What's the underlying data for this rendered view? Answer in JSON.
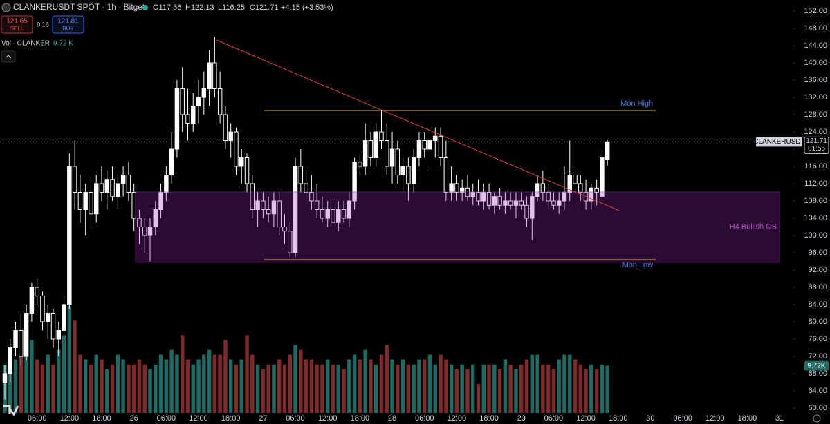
{
  "chart_data": {
    "type": "candlestick",
    "title": "CLANKERUSDT SPOT · 1h · Bitget",
    "ohlc_text": [
      "O117.56",
      "H122.13",
      "L116.25",
      "C121.71",
      "+4.15 (+3.53%)"
    ],
    "sell_price": "121.65",
    "sell_label": "SELL",
    "spread": "0.16",
    "buy_price": "121.81",
    "buy_label": "BUY",
    "volume_legend": "Vol · CLANKER",
    "volume_legend_value": "9.72 K",
    "symbol_tag": "CLANKERUSDT",
    "last_price_tag": "121.71",
    "countdown_tag": "01:55",
    "volume_tag": "9.72K",
    "up_color": "#ffffff",
    "down_color": "#000000",
    "volume_up_color": "#1e6b63",
    "volume_down_color": "#7f2b2b",
    "xlim": [
      -0.9,
      146.3
    ],
    "ylim": [
      58.88,
      154.56
    ],
    "volume_lim": [
      0,
      85
    ],
    "last_price": 121.71,
    "xticks": [
      {
        "value": 6,
        "label": "06:00"
      },
      {
        "value": 12,
        "label": "12:00"
      },
      {
        "value": 18,
        "label": "18:00"
      },
      {
        "value": 24,
        "label": "26"
      },
      {
        "value": 30,
        "label": "06:00"
      },
      {
        "value": 36,
        "label": "12:00"
      },
      {
        "value": 42,
        "label": "18:00"
      },
      {
        "value": 48,
        "label": "27"
      },
      {
        "value": 54,
        "label": "06:00"
      },
      {
        "value": 60,
        "label": "12:00"
      },
      {
        "value": 66,
        "label": "18:00"
      },
      {
        "value": 72,
        "label": "28"
      },
      {
        "value": 78,
        "label": "06:00"
      },
      {
        "value": 84,
        "label": "12:00"
      },
      {
        "value": 90,
        "label": "18:00"
      },
      {
        "value": 96,
        "label": "29"
      },
      {
        "value": 102,
        "label": "06:00"
      },
      {
        "value": 108,
        "label": "12:00"
      },
      {
        "value": 114,
        "label": "18:00"
      },
      {
        "value": 120,
        "label": "30"
      },
      {
        "value": 126,
        "label": "06:00"
      },
      {
        "value": 132,
        "label": "12:00"
      },
      {
        "value": 138,
        "label": "18:00"
      },
      {
        "value": 144,
        "label": "31"
      }
    ],
    "yticks": [
      {
        "value": 60,
        "label": "60.00"
      },
      {
        "value": 64,
        "label": "64.00"
      },
      {
        "value": 68,
        "label": "68.00"
      },
      {
        "value": 72,
        "label": "72.00"
      },
      {
        "value": 76,
        "label": "76.00"
      },
      {
        "value": 80,
        "label": "80.00"
      },
      {
        "value": 84,
        "label": "84.00"
      },
      {
        "value": 88,
        "label": "88.00"
      },
      {
        "value": 92,
        "label": "92.00"
      },
      {
        "value": 96,
        "label": "96.00"
      },
      {
        "value": 100,
        "label": "100.00"
      },
      {
        "value": 104,
        "label": "104.00"
      },
      {
        "value": 108,
        "label": "108.00"
      },
      {
        "value": 112,
        "label": "112.00"
      },
      {
        "value": 116,
        "label": "116.00"
      },
      {
        "value": 120,
        "label": "120.00"
      },
      {
        "value": 124,
        "label": "124.00"
      },
      {
        "value": 128,
        "label": "128.00"
      },
      {
        "value": 132,
        "label": "132.00"
      },
      {
        "value": 136,
        "label": "136.00"
      },
      {
        "value": 140,
        "label": "140.00"
      },
      {
        "value": 144,
        "label": "144.00"
      },
      {
        "value": 148,
        "label": "148.00"
      },
      {
        "value": 152,
        "label": "152.00"
      }
    ],
    "candles": [
      [
        66,
        70,
        62,
        68
      ],
      [
        68,
        76,
        66,
        74
      ],
      [
        74,
        80,
        72,
        78
      ],
      [
        78,
        82,
        70,
        72
      ],
      [
        72,
        84,
        71,
        82
      ],
      [
        82,
        89,
        80,
        88
      ],
      [
        88,
        90,
        84,
        86
      ],
      [
        86,
        87,
        78,
        80
      ],
      [
        80,
        84,
        76,
        82
      ],
      [
        82,
        83,
        74,
        76
      ],
      [
        76,
        80,
        72,
        78
      ],
      [
        78,
        86,
        76,
        84
      ],
      [
        84,
        119,
        83,
        116
      ],
      [
        116,
        122,
        106,
        110
      ],
      [
        110,
        114,
        103,
        106
      ],
      [
        106,
        112,
        100,
        110
      ],
      [
        110,
        113,
        102,
        105
      ],
      [
        105,
        114,
        103,
        112
      ],
      [
        112,
        116,
        108,
        110
      ],
      [
        110,
        115,
        106,
        113
      ],
      [
        113,
        116,
        108,
        109
      ],
      [
        109,
        114,
        106,
        112
      ],
      [
        112,
        116,
        109,
        114
      ],
      [
        114,
        117,
        108,
        110
      ],
      [
        110,
        112,
        101,
        104
      ],
      [
        104,
        106,
        98,
        102
      ],
      [
        102,
        104,
        96,
        100
      ],
      [
        100,
        104,
        94,
        102
      ],
      [
        102,
        108,
        100,
        106
      ],
      [
        106,
        112,
        104,
        110
      ],
      [
        110,
        116,
        108,
        114
      ],
      [
        114,
        124,
        112,
        120
      ],
      [
        120,
        136,
        118,
        134
      ],
      [
        134,
        139,
        124,
        128
      ],
      [
        128,
        134,
        122,
        126
      ],
      [
        126,
        133,
        124,
        130
      ],
      [
        130,
        136,
        126,
        132
      ],
      [
        132,
        138,
        128,
        134
      ],
      [
        134,
        143,
        130,
        140
      ],
      [
        140,
        146,
        132,
        134
      ],
      [
        134,
        138,
        126,
        128
      ],
      [
        128,
        130,
        120,
        122
      ],
      [
        122,
        126,
        118,
        124
      ],
      [
        124,
        125,
        114,
        116
      ],
      [
        116,
        120,
        112,
        118
      ],
      [
        118,
        119,
        110,
        112
      ],
      [
        112,
        114,
        104,
        106
      ],
      [
        106,
        110,
        102,
        108
      ],
      [
        108,
        110,
        104,
        106
      ],
      [
        106,
        109,
        103,
        105
      ],
      [
        105,
        110,
        102,
        108
      ],
      [
        108,
        110,
        100,
        102
      ],
      [
        102,
        105,
        98,
        101
      ],
      [
        101,
        103,
        95,
        96
      ],
      [
        96,
        118,
        95,
        116
      ],
      [
        116,
        120,
        110,
        112
      ],
      [
        112,
        115,
        108,
        110
      ],
      [
        110,
        114,
        106,
        108
      ],
      [
        108,
        112,
        104,
        106
      ],
      [
        106,
        109,
        103,
        104
      ],
      [
        104,
        108,
        102,
        106
      ],
      [
        106,
        108,
        102,
        103
      ],
      [
        103,
        108,
        101,
        106
      ],
      [
        106,
        108,
        103,
        104
      ],
      [
        104,
        110,
        102,
        108
      ],
      [
        108,
        118,
        106,
        117
      ],
      [
        117,
        119,
        114,
        116
      ],
      [
        116,
        126,
        114,
        122
      ],
      [
        122,
        124,
        116,
        118
      ],
      [
        118,
        126,
        116,
        124
      ],
      [
        124,
        129,
        120,
        122
      ],
      [
        122,
        126,
        114,
        116
      ],
      [
        116,
        124,
        112,
        120
      ],
      [
        120,
        122,
        112,
        114
      ],
      [
        114,
        118,
        110,
        116
      ],
      [
        116,
        118,
        108,
        112
      ],
      [
        112,
        120,
        110,
        118
      ],
      [
        118,
        124,
        116,
        122
      ],
      [
        122,
        124,
        118,
        120
      ],
      [
        120,
        124,
        116,
        122
      ],
      [
        122,
        125,
        118,
        123
      ],
      [
        123,
        125,
        116,
        118
      ],
      [
        118,
        122,
        108,
        110
      ],
      [
        110,
        116,
        108,
        112
      ],
      [
        112,
        114,
        108,
        110
      ],
      [
        110,
        113,
        108,
        111
      ],
      [
        111,
        114,
        108,
        109
      ],
      [
        109,
        112,
        107,
        110
      ],
      [
        110,
        113,
        107,
        108
      ],
      [
        108,
        112,
        106,
        110
      ],
      [
        110,
        112,
        106,
        107
      ],
      [
        107,
        110,
        105,
        109
      ],
      [
        109,
        111,
        106,
        107
      ],
      [
        107,
        110,
        105,
        108
      ],
      [
        108,
        110,
        106,
        107
      ],
      [
        107,
        110,
        104,
        108
      ],
      [
        108,
        110,
        106,
        107
      ],
      [
        107,
        109,
        102,
        104
      ],
      [
        104,
        110,
        99,
        109
      ],
      [
        109,
        114,
        108,
        112
      ],
      [
        112,
        115,
        108,
        110
      ],
      [
        110,
        112,
        106,
        108
      ],
      [
        108,
        110,
        106,
        107
      ],
      [
        107,
        110,
        105,
        108
      ],
      [
        108,
        116,
        106,
        110
      ],
      [
        110,
        122,
        108,
        114
      ],
      [
        114,
        116,
        110,
        112
      ],
      [
        112,
        114,
        108,
        110
      ],
      [
        110,
        113,
        106,
        108
      ],
      [
        108,
        112,
        106,
        111
      ],
      [
        111,
        113,
        107,
        110
      ],
      [
        109,
        119,
        108,
        118
      ],
      [
        117.56,
        122.13,
        116.25,
        121.71
      ]
    ],
    "volume": [
      10,
      12,
      11,
      13,
      12,
      15,
      11,
      10,
      12,
      10,
      13,
      16,
      22,
      19,
      12,
      11,
      10,
      12,
      11,
      9,
      10,
      12,
      11,
      10,
      10,
      11,
      10,
      9,
      10,
      12,
      11,
      13,
      12,
      16,
      11,
      10,
      11,
      12,
      13,
      12,
      12,
      15,
      11,
      10,
      11,
      16,
      12,
      10,
      9,
      10,
      10,
      11,
      10,
      12,
      14,
      13,
      11,
      11,
      10,
      10,
      11,
      10,
      10,
      9,
      11,
      12,
      11,
      13,
      11,
      10,
      12,
      14,
      11,
      10,
      11,
      10,
      10,
      11,
      11,
      12,
      10,
      12,
      11,
      10,
      9,
      10,
      9,
      10,
      6,
      10,
      10,
      10,
      9,
      11,
      10,
      9,
      10,
      11,
      12,
      12,
      10,
      10,
      9,
      11,
      12,
      12,
      11,
      10,
      9,
      10,
      9,
      10,
      9.72
    ],
    "trendline": {
      "x": [
        39.3,
        114.1
      ],
      "y": [
        145.3,
        105.8
      ],
      "color": "#e0404a"
    },
    "levels": [
      {
        "label": "Mon High",
        "x": [
          48.2,
          121
        ],
        "y": 128.96,
        "color": "#d6b84e",
        "label_color": "#4d7ce8"
      },
      {
        "label": "Mon Low",
        "x": [
          48.2,
          121
        ],
        "y": 94.4,
        "color": "#d6b84e",
        "label_color": "#4d7ce8"
      }
    ],
    "zone": {
      "label": "H4 Bullish OB",
      "x": [
        24.3,
        144
      ],
      "y": [
        93.8,
        110.1
      ],
      "color": "#9c27b0",
      "label_color": "#b455c8"
    }
  }
}
